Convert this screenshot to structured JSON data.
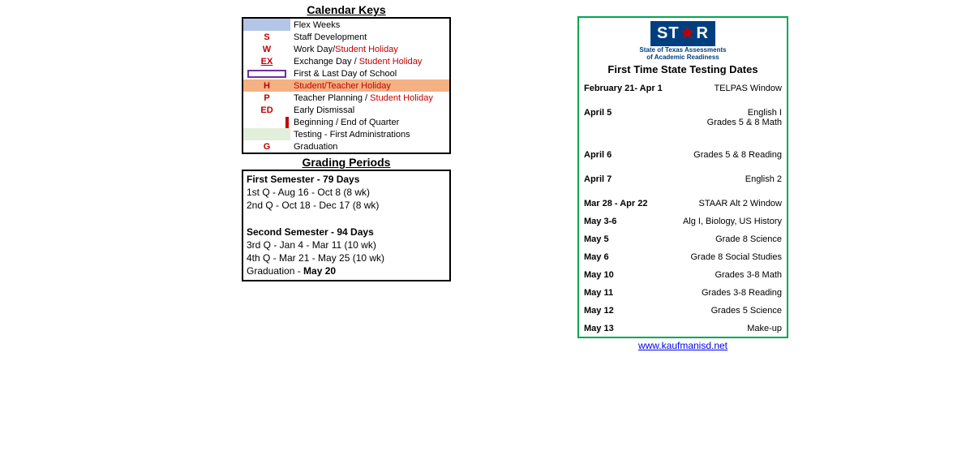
{
  "colors": {
    "border_black": "#000000",
    "border_green": "#00a651",
    "red": "#c00000",
    "blue_logo": "#003f7f",
    "link": "#0000ee",
    "flex_bg": "#b4c6e7",
    "holiday_bg": "#f4b183",
    "testing_bg": "#e2efda",
    "purple": "#7030a0"
  },
  "keys_title": "Calendar Keys",
  "keys": {
    "flex": {
      "label": "Flex Weeks"
    },
    "s": {
      "code": "S",
      "label": "Staff Development"
    },
    "w": {
      "code": "W",
      "label_a": "Work Day/",
      "label_b": "Student Holiday"
    },
    "ex": {
      "code": "EX",
      "label_a": "Exchange Day / ",
      "label_b": "Student Holiday"
    },
    "fl": {
      "label": "First & Last Day of School"
    },
    "h": {
      "code": "H",
      "label": "Student/Teacher Holiday"
    },
    "p": {
      "code": "P",
      "label_a": "Teacher Planning / ",
      "label_b": "Student Holiday"
    },
    "ed": {
      "code": "ED",
      "label": "Early Dismissal"
    },
    "q": {
      "label": "Beginning / End of Quarter"
    },
    "t": {
      "label": "Testing - First Administrations"
    },
    "g": {
      "code": "G",
      "label": "Graduation"
    }
  },
  "grading_title": "Grading Periods",
  "grading": {
    "sem1": "First Semester - 79 Days",
    "q1": "1st Q - Aug 16 - Oct 8 (8 wk)",
    "q2": "2nd Q - Oct 18 - Dec 17  (8 wk)",
    "sem2": "Second Semester - 94 Days",
    "q3": "3rd Q - Jan 4 - Mar 11 (10 wk)",
    "q4": "4th Q - Mar 21 - May 25 (10 wk)",
    "grad_a": "Graduation - ",
    "grad_b": "May 20"
  },
  "star": {
    "logo_a": "ST",
    "logo_b": "R",
    "sub1": "State of Texas Assessments",
    "sub2": "of Academic Readiness",
    "title": "First Time State Testing Dates",
    "rows": [
      {
        "date": "February 21- Apr 1",
        "desc": "TELPAS Window"
      },
      {
        "date": "April 5",
        "desc": "English I\nGrades 5 & 8 Math"
      },
      {
        "date": "April 6",
        "desc": "Grades 5 & 8 Reading"
      },
      {
        "date": "April 7",
        "desc": "English 2"
      },
      {
        "date": "Mar 28 - Apr 22",
        "desc": "STAAR Alt 2 Window"
      },
      {
        "date": "May 3-6",
        "desc": "Alg I, Biology, US History"
      },
      {
        "date": "May 5",
        "desc": "Grade 8 Science"
      },
      {
        "date": "May 6",
        "desc": "Grade 8 Social Studies"
      },
      {
        "date": "May 10",
        "desc": "Grades 3-8 Math"
      },
      {
        "date": "May 11",
        "desc": "Grades 3-8 Reading"
      },
      {
        "date": "May 12",
        "desc": "Grades 5 Science"
      },
      {
        "date": "May 13",
        "desc": "Make-up"
      }
    ]
  },
  "link_text": "www.kaufmanisd.net"
}
